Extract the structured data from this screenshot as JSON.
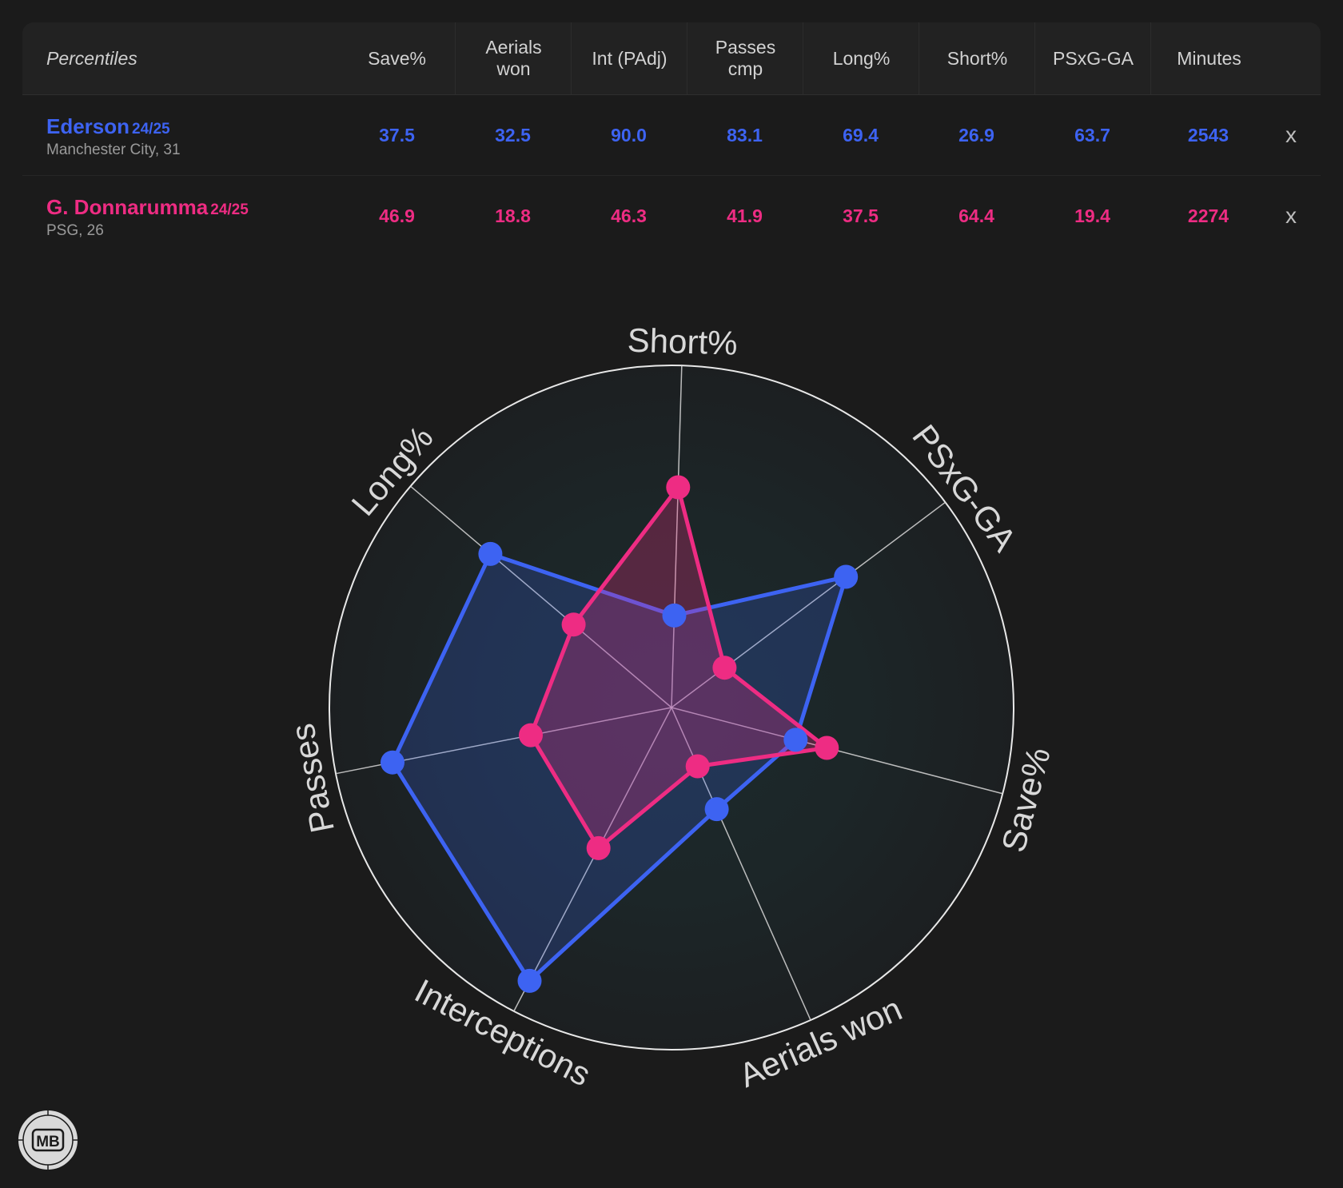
{
  "table": {
    "title": "Percentiles",
    "columns": [
      [
        "Save%"
      ],
      [
        "Aerials",
        "won"
      ],
      [
        "Int (PAdj)"
      ],
      [
        "Passes",
        "cmp"
      ],
      [
        "Long%"
      ],
      [
        "Short%"
      ],
      [
        "PSxG-GA"
      ],
      [
        "Minutes"
      ]
    ],
    "remove_label": "x",
    "players": [
      {
        "name": "Ederson",
        "season": "24/25",
        "team": "Manchester City, 31",
        "color": "#3d63f2",
        "values": [
          "37.5",
          "32.5",
          "90.0",
          "83.1",
          "69.4",
          "26.9",
          "63.7",
          "2543"
        ]
      },
      {
        "name": "G. Donnarumma",
        "season": "24/25",
        "team": "PSG, 26",
        "color": "#ee2c83",
        "values": [
          "46.9",
          "18.8",
          "46.3",
          "41.9",
          "37.5",
          "64.4",
          "19.4",
          "2274"
        ]
      }
    ]
  },
  "chart_data": {
    "type": "radar",
    "axes": [
      "Short%",
      "PSxG-GA",
      "Save%",
      "Aerials won",
      "Interceptions",
      "Passes",
      "Long%"
    ],
    "range": [
      0,
      100
    ],
    "series": [
      {
        "name": "Ederson",
        "color": "#3d63f2",
        "values": [
          26.9,
          63.7,
          37.5,
          32.5,
          90.0,
          83.1,
          69.4
        ]
      },
      {
        "name": "G. Donnarumma",
        "color": "#ee2c83",
        "values": [
          64.4,
          19.4,
          46.9,
          18.8,
          46.3,
          41.9,
          37.5
        ]
      }
    ]
  },
  "logo": {
    "text": "MB"
  }
}
